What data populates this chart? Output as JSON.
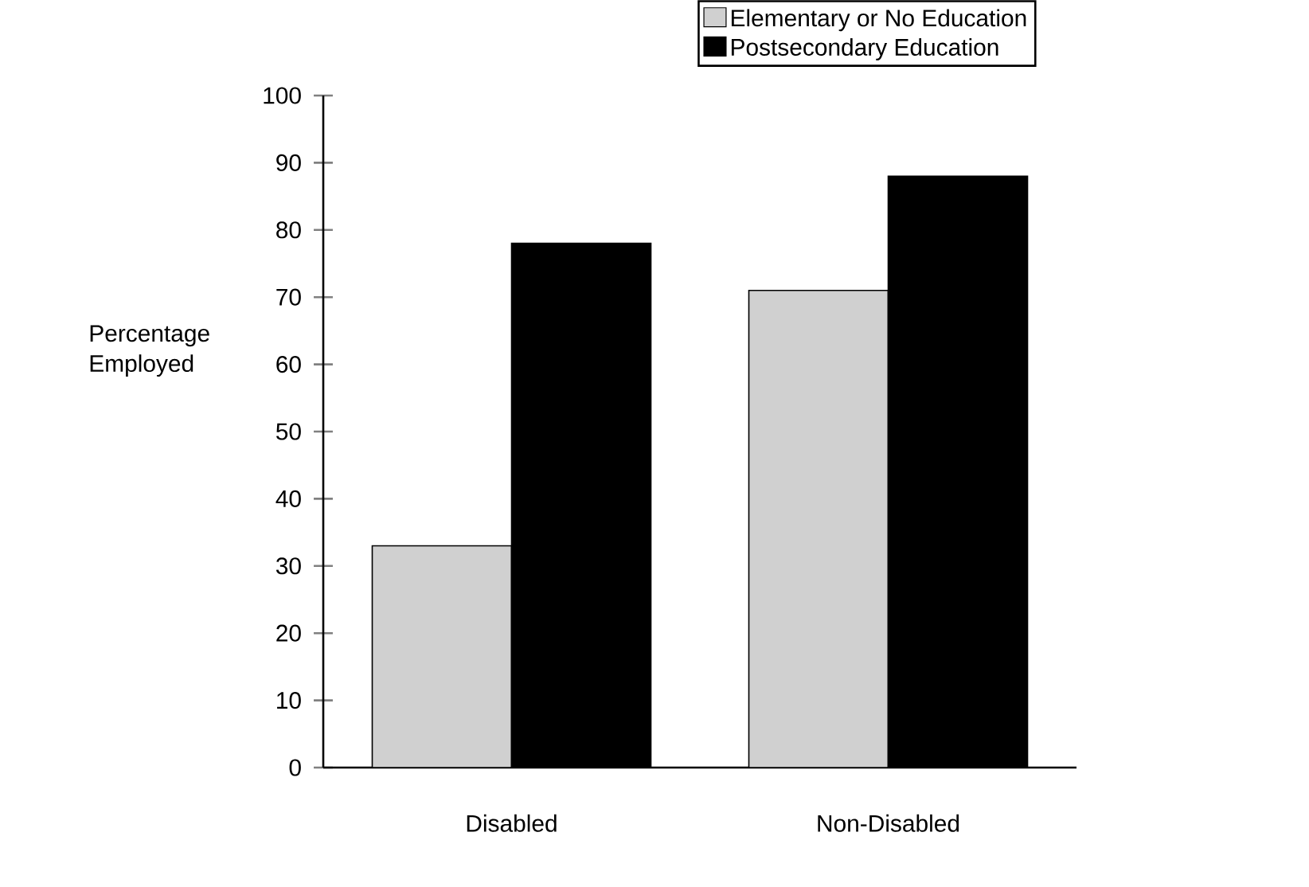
{
  "chart_data": {
    "type": "bar",
    "ylabel": "Percentage Employed",
    "categories": [
      "Disabled",
      "Non-Disabled"
    ],
    "series": [
      {
        "name": "Elementary or No Education",
        "color": "#d0d0d0",
        "values": [
          33,
          71
        ]
      },
      {
        "name": "Postsecondary Education",
        "color": "#000000",
        "values": [
          78,
          88
        ]
      }
    ],
    "ylim": [
      0,
      100
    ],
    "yticks": [
      0,
      10,
      20,
      30,
      40,
      50,
      60,
      70,
      80,
      90,
      100
    ],
    "grid": false,
    "legend": "top right"
  }
}
